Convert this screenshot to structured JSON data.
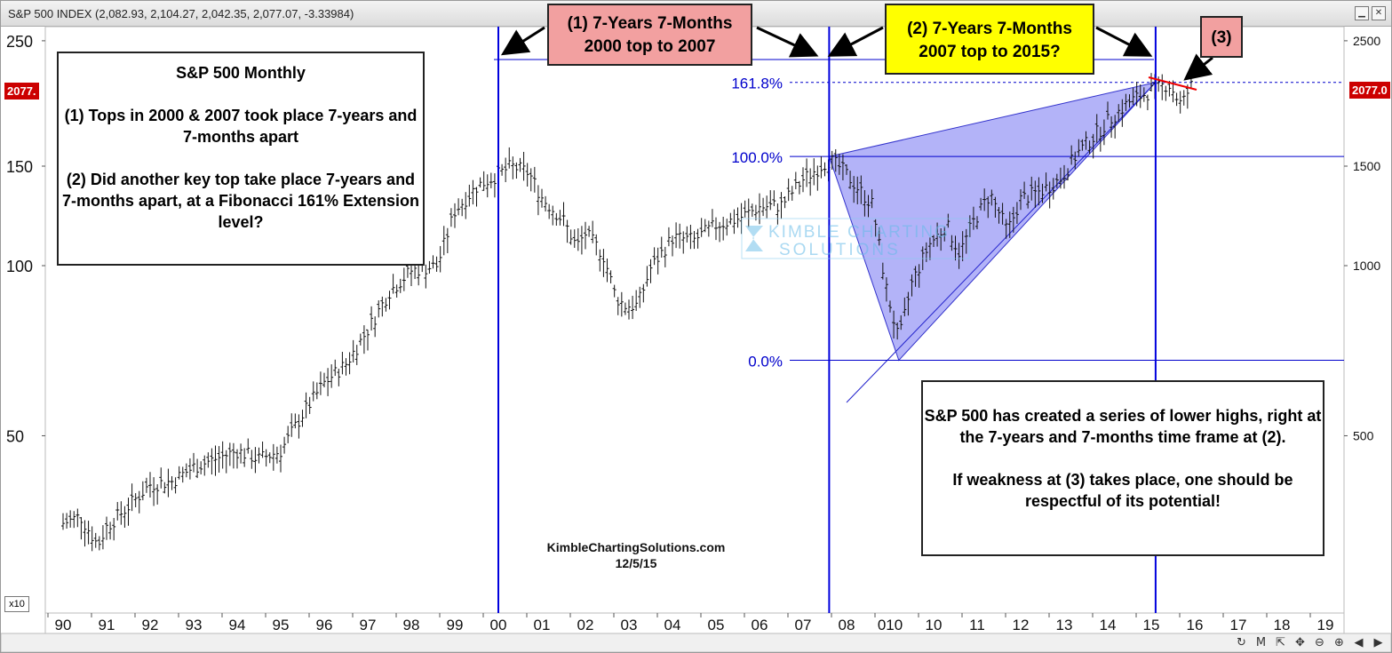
{
  "window": {
    "title": "S&P 500 INDEX (2,082.93, 2,104.27, 2,042.35, 2,077.07, -3.33984)"
  },
  "chart_data": {
    "type": "bar",
    "ohlc": true,
    "scale": "log",
    "x_tick_labels": [
      "90",
      "91",
      "92",
      "93",
      "94",
      "95",
      "96",
      "97",
      "98",
      "99",
      "00",
      "01",
      "02",
      "03",
      "04",
      "05",
      "06",
      "07",
      "08",
      "010",
      "10",
      "11",
      "12",
      "13",
      "14",
      "15",
      "16",
      "17",
      "18",
      "19"
    ],
    "left_axis": {
      "ticks": [
        50,
        100,
        150,
        250
      ],
      "multiplier_label": "x10"
    },
    "right_axis": {
      "ticks": [
        500,
        1000,
        1500,
        2500
      ]
    },
    "ylim": [
      210,
      2800
    ],
    "last_price_label": "2077.0",
    "left_price_label": "2077.",
    "monthly_closes": [
      {
        "t": 1990.0,
        "v": 350
      },
      {
        "t": 1990.4,
        "v": 360
      },
      {
        "t": 1990.8,
        "v": 320
      },
      {
        "t": 1991.0,
        "v": 345
      },
      {
        "t": 1991.5,
        "v": 375
      },
      {
        "t": 1992.0,
        "v": 410
      },
      {
        "t": 1992.5,
        "v": 415
      },
      {
        "t": 1993.0,
        "v": 440
      },
      {
        "t": 1993.5,
        "v": 455
      },
      {
        "t": 1994.0,
        "v": 470
      },
      {
        "t": 1994.5,
        "v": 455
      },
      {
        "t": 1995.0,
        "v": 470
      },
      {
        "t": 1995.5,
        "v": 545
      },
      {
        "t": 1996.0,
        "v": 620
      },
      {
        "t": 1996.5,
        "v": 670
      },
      {
        "t": 1997.0,
        "v": 770
      },
      {
        "t": 1997.5,
        "v": 900
      },
      {
        "t": 1998.0,
        "v": 980
      },
      {
        "t": 1998.6,
        "v": 1000
      },
      {
        "t": 1999.0,
        "v": 1250
      },
      {
        "t": 1999.5,
        "v": 1380
      },
      {
        "t": 2000.0,
        "v": 1450
      },
      {
        "t": 2000.3,
        "v": 1500
      },
      {
        "t": 2000.7,
        "v": 1460
      },
      {
        "t": 2001.0,
        "v": 1320
      },
      {
        "t": 2001.5,
        "v": 1200
      },
      {
        "t": 2001.8,
        "v": 1080
      },
      {
        "t": 2002.0,
        "v": 1140
      },
      {
        "t": 2002.4,
        "v": 1050
      },
      {
        "t": 2002.7,
        "v": 880
      },
      {
        "t": 2002.9,
        "v": 850
      },
      {
        "t": 2003.2,
        "v": 850
      },
      {
        "t": 2003.5,
        "v": 990
      },
      {
        "t": 2004.0,
        "v": 1120
      },
      {
        "t": 2004.5,
        "v": 1110
      },
      {
        "t": 2005.0,
        "v": 1180
      },
      {
        "t": 2005.5,
        "v": 1210
      },
      {
        "t": 2006.0,
        "v": 1270
      },
      {
        "t": 2006.5,
        "v": 1280
      },
      {
        "t": 2007.0,
        "v": 1420
      },
      {
        "t": 2007.6,
        "v": 1540
      },
      {
        "t": 2007.9,
        "v": 1480
      },
      {
        "t": 2008.3,
        "v": 1360
      },
      {
        "t": 2008.6,
        "v": 1280
      },
      {
        "t": 2008.9,
        "v": 920
      },
      {
        "t": 2009.2,
        "v": 735
      },
      {
        "t": 2009.5,
        "v": 930
      },
      {
        "t": 2009.9,
        "v": 1090
      },
      {
        "t": 2010.3,
        "v": 1180
      },
      {
        "t": 2010.6,
        "v": 1050
      },
      {
        "t": 2010.9,
        "v": 1190
      },
      {
        "t": 2011.3,
        "v": 1340
      },
      {
        "t": 2011.7,
        "v": 1150
      },
      {
        "t": 2012.0,
        "v": 1310
      },
      {
        "t": 2012.5,
        "v": 1360
      },
      {
        "t": 2012.9,
        "v": 1420
      },
      {
        "t": 2013.3,
        "v": 1580
      },
      {
        "t": 2013.7,
        "v": 1700
      },
      {
        "t": 2014.0,
        "v": 1800
      },
      {
        "t": 2014.5,
        "v": 1950
      },
      {
        "t": 2015.0,
        "v": 2040
      },
      {
        "t": 2015.4,
        "v": 2100
      },
      {
        "t": 2015.7,
        "v": 1920
      },
      {
        "t": 2015.9,
        "v": 2080
      }
    ],
    "fibonacci_levels": [
      {
        "label": "161.8%",
        "value": 2110
      },
      {
        "label": "100.0%",
        "value": 1560
      },
      {
        "label": "0.0%",
        "value": 680
      }
    ],
    "vertical_markers": [
      2000.0,
      2007.6,
      2015.1
    ],
    "annotations": {
      "callout_1": [
        "(1) 7-Years 7-Months",
        "2000 top to 2007"
      ],
      "callout_2": [
        "(2) 7-Years 7-Months",
        "2007 top to 2015?"
      ],
      "callout_3": "(3)",
      "watermark_line1": "KIMBLE CHARTING",
      "watermark_line2": "SOLUTIONS"
    }
  },
  "notes": {
    "left_lines": [
      "S&P 500 Monthly",
      "(1) Tops in 2000 & 2007 took place 7-years and 7-months apart",
      "(2) Did another key top take place 7-years and 7-months apart, at a Fibonacci 161% Extension level?"
    ],
    "right_lines": [
      "S&P 500 has created a series of lower highs, right at the 7-years and 7-months time frame at (2).",
      "If weakness at (3) takes place, one should be respectful of its potential!"
    ]
  },
  "footer": {
    "site": "KimbleChartingSolutions.com",
    "date": "12/5/15"
  },
  "colors": {
    "fib_line": "#0000cc",
    "marker_line": "#0000dd",
    "triangle_fill": "#9999f5",
    "price_badge": "#cc0000",
    "callout_pink": "#f2a0a0",
    "callout_yellow": "#ffff00",
    "trend_red": "#ee0000"
  },
  "toolbar_icons": [
    "refresh-icon",
    "m-icon",
    "expand-icon",
    "move-icon",
    "zoom-out-icon",
    "zoom-in-icon",
    "scroll-left-icon",
    "scroll-right-icon"
  ],
  "toolbar_glyphs": [
    "↻",
    "M",
    "⇱",
    "✥",
    "⊖",
    "⊕",
    "◀",
    "▶"
  ]
}
